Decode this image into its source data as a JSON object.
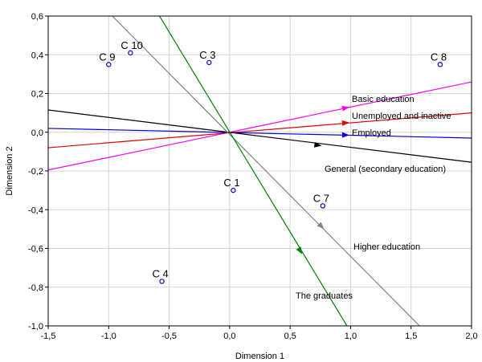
{
  "chart_data": {
    "type": "scatter",
    "title": "",
    "xlabel": "Dimension 1",
    "ylabel": "Dimension 2",
    "xlim": [
      -1.5,
      2.0
    ],
    "ylim": [
      -1.0,
      0.6
    ],
    "x_ticks": [
      -1.5,
      -1.0,
      -0.5,
      0.0,
      0.5,
      1.0,
      1.5,
      2.0
    ],
    "y_ticks": [
      -1.0,
      -0.8,
      -0.6,
      -0.4,
      -0.2,
      0.0,
      0.2,
      0.4,
      0.6
    ],
    "x_tick_labels": [
      "-1,5",
      "-1,0",
      "-0,5",
      "0,0",
      "0,5",
      "1,0",
      "1,5",
      "2,0"
    ],
    "y_tick_labels": [
      "-1,0",
      "-0,8",
      "-0,6",
      "-0,4",
      "-0,2",
      "0,0",
      "0,2",
      "0,4",
      "0,6"
    ],
    "grid": true,
    "points": [
      {
        "label": "C 1",
        "x": 0.03,
        "y": -0.3
      },
      {
        "label": "C 3",
        "x": -0.17,
        "y": 0.36
      },
      {
        "label": "C 4",
        "x": -0.56,
        "y": -0.77
      },
      {
        "label": "C 7",
        "x": 0.77,
        "y": -0.38
      },
      {
        "label": "C 8",
        "x": 1.74,
        "y": 0.35
      },
      {
        "label": "C 9",
        "x": -1.0,
        "y": 0.35
      },
      {
        "label": "C 10",
        "x": -0.82,
        "y": 0.41
      }
    ],
    "vectors": [
      {
        "label": "Basic education",
        "color": "#ff00ff",
        "line_from": [
          -1.5,
          -0.195
        ],
        "line_to": [
          2.0,
          0.26
        ],
        "arrow_to": [
          0.99,
          0.13
        ]
      },
      {
        "label": "Unemployed and inactive",
        "color": "#e00000",
        "line_from": [
          -1.5,
          -0.08
        ],
        "line_to": [
          2.0,
          0.1
        ],
        "arrow_to": [
          0.99,
          0.05
        ]
      },
      {
        "label": "Employed",
        "color": "#0000dd",
        "line_from": [
          -1.5,
          0.02
        ],
        "line_to": [
          2.0,
          -0.03
        ],
        "arrow_to": [
          0.99,
          -0.015
        ]
      },
      {
        "label": "General (secondary education)",
        "color": "#000000",
        "line_from": [
          -1.5,
          0.115
        ],
        "line_to": [
          2.0,
          -0.155
        ],
        "arrow_to": [
          0.76,
          -0.07
        ]
      },
      {
        "label": "Higher education",
        "color": "#808080",
        "line_from": [
          -0.97,
          0.6
        ],
        "line_to": [
          1.57,
          -1.0
        ],
        "arrow_to": [
          0.78,
          -0.5
        ]
      },
      {
        "label": "The graduates",
        "color": "#008000",
        "line_from": [
          -0.58,
          0.6
        ],
        "line_to": [
          0.97,
          -1.0
        ],
        "arrow_to": [
          0.6,
          -0.63
        ]
      }
    ]
  }
}
